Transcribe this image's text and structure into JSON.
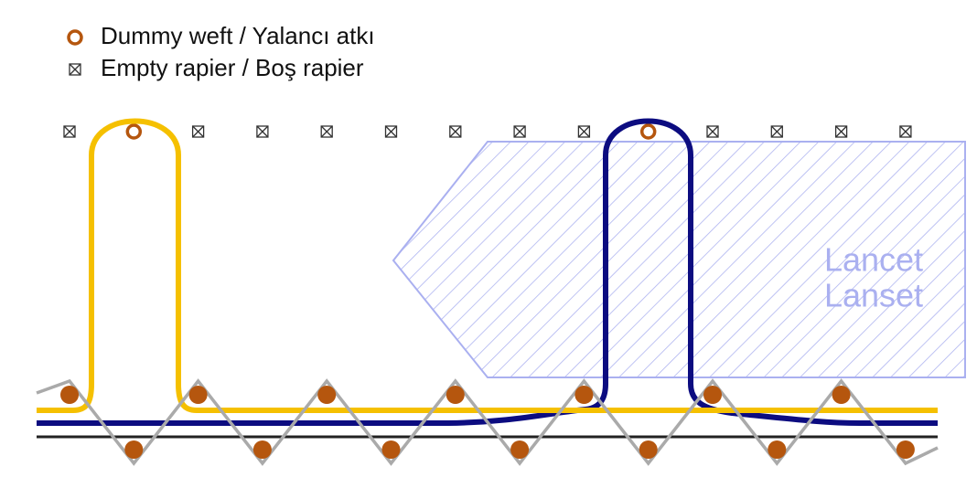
{
  "legend": [
    {
      "label": "Dummy weft / Yalancı atkı"
    },
    {
      "label": "Empty rapier / Boş rapier"
    }
  ],
  "lancet": {
    "lines": [
      "Lancet",
      "Lanset"
    ]
  }
}
